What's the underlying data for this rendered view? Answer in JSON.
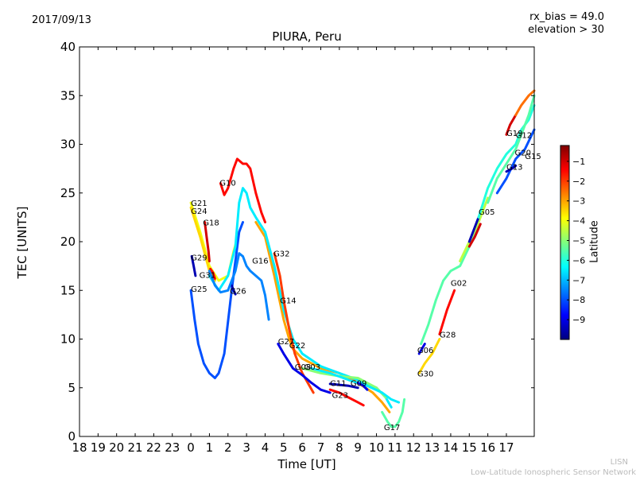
{
  "header": {
    "date": "2017/09/13",
    "bias": "rx_bias = 49.0",
    "elevation": "elevation > 30"
  },
  "footer": {
    "credit_short": "LISN",
    "credit_long": "Low-Latitude Ionospheric Sensor Network"
  },
  "chart_data": {
    "type": "scatter",
    "title": "PIURA, Peru",
    "xlabel": "Time [UT]",
    "ylabel": "TEC [UNITS]",
    "xlim": [
      18,
      42.5
    ],
    "ylim": [
      0,
      40
    ],
    "x_ticks": [
      18,
      19,
      20,
      21,
      22,
      23,
      24,
      25,
      26,
      27,
      28,
      29,
      30,
      31,
      32,
      33,
      34,
      35,
      36,
      37,
      38,
      39,
      40,
      41
    ],
    "x_tick_labels": [
      "18",
      "19",
      "20",
      "21",
      "22",
      "23",
      "0",
      "1",
      "2",
      "3",
      "4",
      "5",
      "6",
      "7",
      "8",
      "9",
      "10",
      "11",
      "12",
      "13",
      "14",
      "15",
      "16",
      "17"
    ],
    "y_ticks": [
      0,
      5,
      10,
      15,
      20,
      25,
      30,
      35,
      40
    ],
    "grid": false,
    "colorbar": {
      "label": "Latitude",
      "range": [
        -10,
        -0.2
      ],
      "ticks": [
        -1,
        -2,
        -3,
        -4,
        -5,
        -6,
        -7,
        -8,
        -9
      ]
    },
    "series": [
      {
        "name": "G21",
        "lat": -4.0,
        "points": [
          [
            24.0,
            24.0
          ],
          [
            24.5,
            21.0
          ],
          [
            25.0,
            17.5
          ],
          [
            25.5,
            16.0
          ],
          [
            26.0,
            16.5
          ],
          [
            26.3,
            19.0
          ],
          [
            26.6,
            21.0
          ]
        ]
      },
      {
        "name": "G24",
        "lat": -3.5,
        "points": [
          [
            24.0,
            23.5
          ],
          [
            24.5,
            20.5
          ],
          [
            25.0,
            17.0
          ],
          [
            25.3,
            16.0
          ]
        ]
      },
      {
        "name": "G18",
        "lat": -1.0,
        "points": [
          [
            24.75,
            22.0
          ],
          [
            24.85,
            20.5
          ],
          [
            24.95,
            19.0
          ],
          [
            25.0,
            18.0
          ]
        ]
      },
      {
        "name": "G29",
        "lat": -9.5,
        "points": [
          [
            24.05,
            18.5
          ],
          [
            24.15,
            17.5
          ],
          [
            24.25,
            16.5
          ]
        ]
      },
      {
        "name": "G31",
        "lat": -1.5,
        "points": [
          [
            25.05,
            17.2
          ],
          [
            25.2,
            16.8
          ],
          [
            25.3,
            16.2
          ]
        ]
      },
      {
        "name": "G25",
        "lat": -8.0,
        "points": [
          [
            24.0,
            15.0
          ],
          [
            24.2,
            12.0
          ],
          [
            24.4,
            9.5
          ],
          [
            24.7,
            7.5
          ],
          [
            25.0,
            6.5
          ],
          [
            25.3,
            6.0
          ],
          [
            25.5,
            6.5
          ],
          [
            25.8,
            8.5
          ],
          [
            26.2,
            15.0
          ],
          [
            26.6,
            21.0
          ],
          [
            26.8,
            22.0
          ]
        ]
      },
      {
        "name": "G26",
        "lat": -9.5,
        "points": [
          [
            26.2,
            15.5
          ],
          [
            26.3,
            15.0
          ],
          [
            26.4,
            14.6
          ]
        ]
      },
      {
        "name": "G10",
        "lat": -1.5,
        "points": [
          [
            25.6,
            26.0
          ],
          [
            25.8,
            24.8
          ],
          [
            26.0,
            25.5
          ],
          [
            26.3,
            27.5
          ],
          [
            26.5,
            28.5
          ],
          [
            26.8,
            28.0
          ],
          [
            27.0,
            28.0
          ],
          [
            27.2,
            27.5
          ],
          [
            27.5,
            25.0
          ],
          [
            27.8,
            23.0
          ],
          [
            28.0,
            22.0
          ]
        ]
      },
      {
        "name": "G22",
        "lat": -3.0,
        "points": [
          [
            27.5,
            22.0
          ],
          [
            28.0,
            20.5
          ],
          [
            28.5,
            16.5
          ],
          [
            29.0,
            12.0
          ],
          [
            29.3,
            10.0
          ],
          [
            29.5,
            9.0
          ],
          [
            30.0,
            8.0
          ],
          [
            30.5,
            7.5
          ],
          [
            31.0,
            7.0
          ],
          [
            32.0,
            6.5
          ],
          [
            33.0,
            5.5
          ],
          [
            33.8,
            4.5
          ],
          [
            34.3,
            3.5
          ],
          [
            34.7,
            2.5
          ]
        ]
      },
      {
        "name": "G14",
        "lat": -6.5,
        "points": [
          [
            25.0,
            16.5
          ],
          [
            25.5,
            15.0
          ],
          [
            26.0,
            16.5
          ],
          [
            26.4,
            19.5
          ],
          [
            26.6,
            24.0
          ],
          [
            26.8,
            25.5
          ],
          [
            27.0,
            25.0
          ],
          [
            27.2,
            23.5
          ],
          [
            27.5,
            22.5
          ],
          [
            28.0,
            21.0
          ],
          [
            28.5,
            17.5
          ],
          [
            29.0,
            13.0
          ],
          [
            29.5,
            10.0
          ],
          [
            30.0,
            8.5
          ],
          [
            31.0,
            7.2
          ],
          [
            32.0,
            6.5
          ],
          [
            33.0,
            5.8
          ],
          [
            34.0,
            5.0
          ],
          [
            34.5,
            4.0
          ],
          [
            34.8,
            3.0
          ]
        ]
      },
      {
        "name": "G16",
        "lat": -7.5,
        "points": [
          [
            25.0,
            17.0
          ],
          [
            25.3,
            15.5
          ],
          [
            25.6,
            14.8
          ],
          [
            26.0,
            15.0
          ],
          [
            26.4,
            17.0
          ],
          [
            26.6,
            18.8
          ],
          [
            26.8,
            18.5
          ],
          [
            27.0,
            17.5
          ],
          [
            27.2,
            17.0
          ],
          [
            27.5,
            16.5
          ],
          [
            27.8,
            16.0
          ],
          [
            28.0,
            14.5
          ],
          [
            28.2,
            12.0
          ]
        ]
      },
      {
        "name": "G32",
        "lat": -2.0,
        "points": [
          [
            28.5,
            18.8
          ],
          [
            28.8,
            16.5
          ],
          [
            29.0,
            14.0
          ],
          [
            29.3,
            11.0
          ],
          [
            29.6,
            8.5
          ],
          [
            30.0,
            6.5
          ],
          [
            30.3,
            5.5
          ],
          [
            30.6,
            4.5
          ]
        ]
      },
      {
        "name": "G27",
        "lat": -9.0,
        "points": [
          [
            28.7,
            9.5
          ],
          [
            29.0,
            8.5
          ],
          [
            29.5,
            7.0
          ],
          [
            30.0,
            6.3
          ],
          [
            30.5,
            5.5
          ],
          [
            31.0,
            4.8
          ],
          [
            31.5,
            4.5
          ]
        ]
      },
      {
        "name": "G08",
        "lat": -5.0,
        "points": [
          [
            30.0,
            7.0
          ],
          [
            31.0,
            6.5
          ],
          [
            32.0,
            6.2
          ],
          [
            33.0,
            6.0
          ],
          [
            34.0,
            5.0
          ],
          [
            34.5,
            4.0
          ]
        ]
      },
      {
        "name": "G03",
        "lat": -6.5,
        "points": [
          [
            30.5,
            7.0
          ],
          [
            31.5,
            6.5
          ],
          [
            32.5,
            5.8
          ],
          [
            33.5,
            5.2
          ],
          [
            34.3,
            4.5
          ],
          [
            34.8,
            3.8
          ],
          [
            35.2,
            3.5
          ]
        ]
      },
      {
        "name": "G11",
        "lat": -9.5,
        "points": [
          [
            31.5,
            5.4
          ],
          [
            32.0,
            5.3
          ],
          [
            32.5,
            5.2
          ],
          [
            33.0,
            5.0
          ]
        ]
      },
      {
        "name": "G23",
        "lat": -1.5,
        "points": [
          [
            31.5,
            4.8
          ],
          [
            32.0,
            4.5
          ],
          [
            32.5,
            4.0
          ],
          [
            33.0,
            3.5
          ],
          [
            33.3,
            3.2
          ]
        ]
      },
      {
        "name": "G09",
        "lat": -9.0,
        "points": [
          [
            33.0,
            5.5
          ],
          [
            33.3,
            5.2
          ],
          [
            33.5,
            4.8
          ]
        ]
      },
      {
        "name": "G17",
        "lat": -5.5,
        "points": [
          [
            34.3,
            2.5
          ],
          [
            34.6,
            1.5
          ],
          [
            34.8,
            1.0
          ],
          [
            35.0,
            1.0
          ],
          [
            35.2,
            1.5
          ],
          [
            35.4,
            2.5
          ],
          [
            35.5,
            3.8
          ]
        ]
      },
      {
        "name": "G06",
        "lat": -9.0,
        "points": [
          [
            36.3,
            8.5
          ],
          [
            36.6,
            9.5
          ]
        ]
      },
      {
        "name": "G30",
        "lat": -3.5,
        "points": [
          [
            36.3,
            6.5
          ],
          [
            36.6,
            7.5
          ],
          [
            37.0,
            8.5
          ],
          [
            37.4,
            10.0
          ]
        ]
      },
      {
        "name": "G28",
        "lat": -1.5,
        "points": [
          [
            37.4,
            10.5
          ],
          [
            37.8,
            13.0
          ],
          [
            38.2,
            15.0
          ]
        ]
      },
      {
        "name": "G02",
        "lat": -5.5,
        "points": [
          [
            36.4,
            9.5
          ],
          [
            36.8,
            11.5
          ],
          [
            37.2,
            14.0
          ],
          [
            37.6,
            16.0
          ],
          [
            38.0,
            17.0
          ],
          [
            38.5,
            17.5
          ],
          [
            39.0,
            19.5
          ],
          [
            39.5,
            21.5
          ]
        ]
      },
      {
        "name": "G05",
        "lat": -4.5,
        "points": [
          [
            38.5,
            18.0
          ],
          [
            39.0,
            20.0
          ],
          [
            39.5,
            22.0
          ],
          [
            40.0,
            24.5
          ]
        ]
      },
      {
        "name": "G05b",
        "lat": -1.0,
        "points": [
          [
            39.0,
            19.5
          ],
          [
            39.3,
            20.5
          ],
          [
            39.6,
            21.8
          ]
        ]
      },
      {
        "name": "G02b",
        "lat": -9.5,
        "points": [
          [
            39.0,
            20.0
          ],
          [
            39.3,
            21.5
          ],
          [
            39.5,
            22.5
          ]
        ]
      },
      {
        "name": "G12",
        "lat": -6.0,
        "points": [
          [
            39.5,
            22.5
          ],
          [
            40.0,
            25.5
          ],
          [
            40.5,
            27.5
          ],
          [
            41.0,
            29.0
          ],
          [
            41.5,
            30.0
          ],
          [
            41.8,
            31.5
          ],
          [
            42.2,
            32.5
          ],
          [
            42.5,
            34.0
          ]
        ]
      },
      {
        "name": "G15",
        "lat": -5.5,
        "points": [
          [
            40.0,
            24.0
          ],
          [
            40.5,
            26.5
          ],
          [
            41.0,
            28.0
          ],
          [
            41.5,
            29.5
          ],
          [
            41.8,
            31.0
          ],
          [
            42.2,
            33.0
          ],
          [
            42.5,
            35.0
          ]
        ]
      },
      {
        "name": "G20",
        "lat": -8.0,
        "points": [
          [
            40.5,
            25.0
          ],
          [
            41.0,
            26.5
          ],
          [
            41.5,
            28.5
          ],
          [
            42.0,
            29.5
          ],
          [
            42.5,
            31.5
          ]
        ]
      },
      {
        "name": "G13",
        "lat": -9.5,
        "points": [
          [
            41.0,
            27.2
          ],
          [
            41.3,
            27.5
          ],
          [
            41.5,
            27.8
          ]
        ]
      },
      {
        "name": "G19",
        "lat": -1.0,
        "points": [
          [
            41.0,
            31.0
          ],
          [
            41.2,
            32.0
          ],
          [
            41.5,
            33.0
          ]
        ]
      },
      {
        "name": "G19b",
        "lat": -2.5,
        "points": [
          [
            41.5,
            33.0
          ],
          [
            41.8,
            34.0
          ],
          [
            42.2,
            35.0
          ],
          [
            42.5,
            35.5
          ]
        ]
      }
    ],
    "labels": [
      {
        "text": "G21",
        "x": 24.0,
        "y": 24.0
      },
      {
        "text": "G24",
        "x": 24.0,
        "y": 23.2
      },
      {
        "text": "G18",
        "x": 24.65,
        "y": 22.0
      },
      {
        "text": "G10",
        "x": 25.55,
        "y": 26.1
      },
      {
        "text": "G29",
        "x": 24.0,
        "y": 18.4
      },
      {
        "text": "G31",
        "x": 24.45,
        "y": 16.6
      },
      {
        "text": "G25",
        "x": 24.0,
        "y": 15.2
      },
      {
        "text": "G26",
        "x": 26.1,
        "y": 15.0
      },
      {
        "text": "G16",
        "x": 27.3,
        "y": 18.1
      },
      {
        "text": "G32",
        "x": 28.45,
        "y": 18.8
      },
      {
        "text": "G14",
        "x": 28.8,
        "y": 14.0
      },
      {
        "text": "G27",
        "x": 28.7,
        "y": 9.8
      },
      {
        "text": "G22",
        "x": 29.3,
        "y": 9.4
      },
      {
        "text": "G08",
        "x": 29.6,
        "y": 7.2
      },
      {
        "text": "G03",
        "x": 30.1,
        "y": 7.2
      },
      {
        "text": "G11",
        "x": 31.5,
        "y": 5.5
      },
      {
        "text": "G09",
        "x": 32.6,
        "y": 5.5
      },
      {
        "text": "G23",
        "x": 31.6,
        "y": 4.3
      },
      {
        "text": "G17",
        "x": 34.4,
        "y": 1.0
      },
      {
        "text": "G06",
        "x": 36.2,
        "y": 8.9
      },
      {
        "text": "G30",
        "x": 36.2,
        "y": 6.5
      },
      {
        "text": "G28",
        "x": 37.4,
        "y": 10.5
      },
      {
        "text": "G02",
        "x": 38.0,
        "y": 15.8
      },
      {
        "text": "G05",
        "x": 39.5,
        "y": 23.1
      },
      {
        "text": "G19",
        "x": 41.0,
        "y": 31.2
      },
      {
        "text": "G12",
        "x": 41.5,
        "y": 31.0
      },
      {
        "text": "G20",
        "x": 41.45,
        "y": 29.2
      },
      {
        "text": "G15",
        "x": 42.0,
        "y": 28.8
      },
      {
        "text": "G13",
        "x": 41.0,
        "y": 27.7
      }
    ]
  }
}
